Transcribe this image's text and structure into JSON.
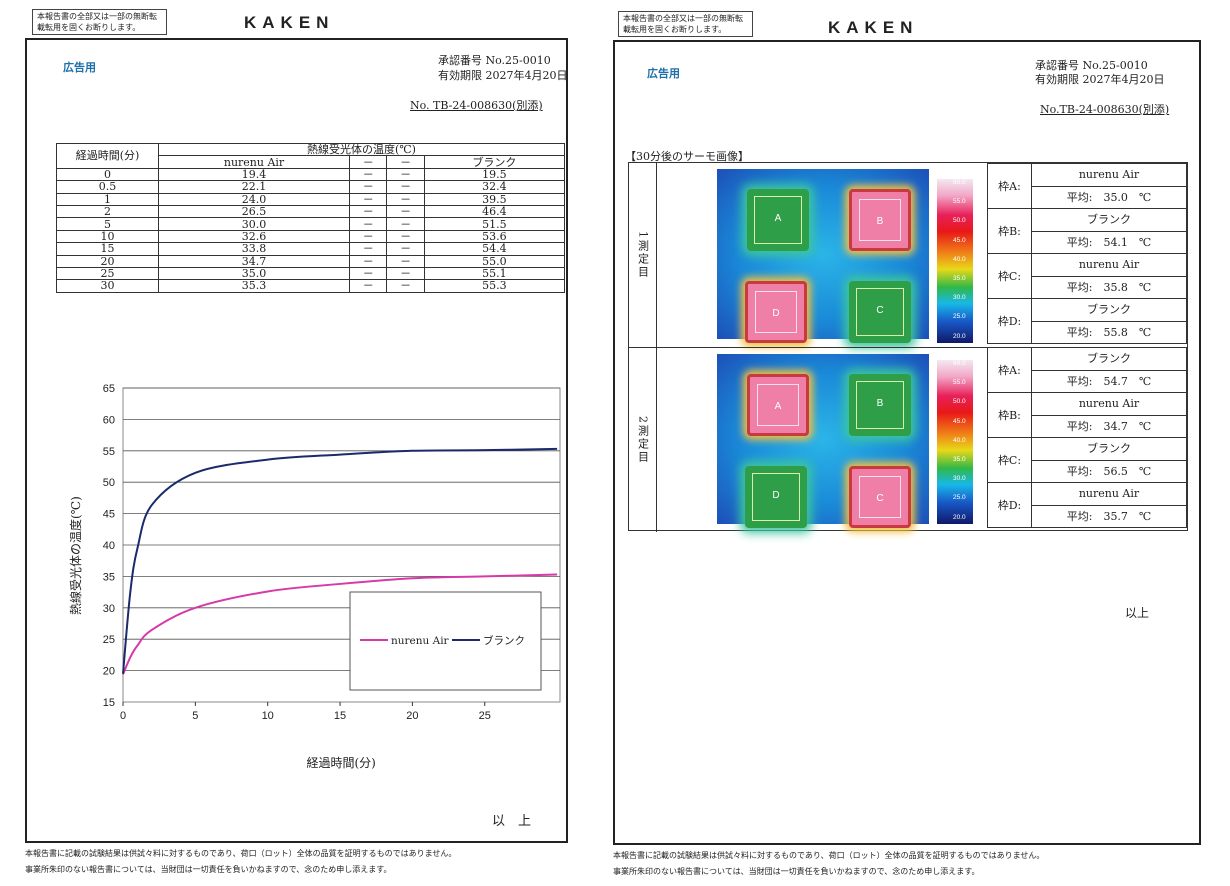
{
  "left_page": {
    "notice": "本報告書の全部又は一部の無断転載転用を固くお断りします。",
    "logo": "KAKEN",
    "ad_label": "広告用",
    "approval_no": "承認番号 No.25-0010",
    "valid_until": "有効期限 2027年4月20日",
    "report_no": "No. TB-24-008630(別添)",
    "table": {
      "header_time": "経過時間(分)",
      "header_group": "熱線受光体の温度(℃)",
      "columns": [
        "nurenu Air",
        "－",
        "－",
        "ブランク"
      ],
      "rows": [
        [
          "0",
          "19.4",
          "－",
          "－",
          "19.5"
        ],
        [
          "0.5",
          "22.1",
          "－",
          "－",
          "32.4"
        ],
        [
          "1",
          "24.0",
          "－",
          "－",
          "39.5"
        ],
        [
          "2",
          "26.5",
          "－",
          "－",
          "46.4"
        ],
        [
          "5",
          "30.0",
          "－",
          "－",
          "51.5"
        ],
        [
          "10",
          "32.6",
          "－",
          "－",
          "53.6"
        ],
        [
          "15",
          "33.8",
          "－",
          "－",
          "54.4"
        ],
        [
          "20",
          "34.7",
          "－",
          "－",
          "55.0"
        ],
        [
          "25",
          "35.0",
          "－",
          "－",
          "55.1"
        ],
        [
          "30",
          "35.3",
          "－",
          "－",
          "55.3"
        ]
      ]
    },
    "closing": "以　上",
    "footer": [
      "本報告書に記載の試験結果は供試々料に対するものであり、荷口（ロット）全体の品質を証明するものではありません。",
      "事業所朱印のない報告書については、当財団は一切責任を負いかねますので、念のため申し添えます。"
    ]
  },
  "chart_data": {
    "type": "line",
    "xlabel": "経過時間(分)",
    "ylabel": "熱線受光体の温度(℃)",
    "xlim": [
      0,
      30
    ],
    "ylim": [
      15,
      65
    ],
    "xticks": [
      "0",
      "5",
      "10",
      "15",
      "20",
      "25"
    ],
    "yticks": [
      "15",
      "20",
      "25",
      "30",
      "35",
      "40",
      "45",
      "50",
      "55",
      "60",
      "65"
    ],
    "grid": "horizontal",
    "legend": "bottom-right",
    "x": [
      0,
      0.5,
      1,
      2,
      5,
      10,
      15,
      20,
      25,
      30
    ],
    "series": [
      {
        "name": "nurenu Air",
        "color": "#d63aa8",
        "values": [
          19.4,
          22.1,
          24.0,
          26.5,
          30.0,
          32.6,
          33.8,
          34.7,
          35.0,
          35.3
        ]
      },
      {
        "name": "ブランク",
        "color": "#1a2a6c",
        "values": [
          19.5,
          32.4,
          39.5,
          46.4,
          51.5,
          53.6,
          54.4,
          55.0,
          55.1,
          55.3
        ]
      }
    ]
  },
  "right_page": {
    "notice": "本報告書の全部又は一部の無断転載転用を固くお断りします。",
    "logo": "KAKEN",
    "ad_label": "広告用",
    "approval_no": "承認番号 No.25-0010",
    "valid_until": "有効期限 2027年4月20日",
    "report_no": "No.TB-24-008630(別添)",
    "section_title": "【30分後のサーモ画像】",
    "scale_labels": [
      "60.0",
      "55.0",
      "50.0",
      "45.0",
      "40.0",
      "35.0",
      "30.0",
      "25.0",
      "20.0"
    ],
    "measurements": [
      {
        "label": "1測定目",
        "squares": [
          {
            "id": "A",
            "hot": false
          },
          {
            "id": "B",
            "hot": true
          },
          {
            "id": "D",
            "hot": true
          },
          {
            "id": "C",
            "hot": false
          }
        ],
        "frames": [
          {
            "frame": "枠A:",
            "sample": "nurenu Air",
            "avg": "平均:　35.0　℃"
          },
          {
            "frame": "枠B:",
            "sample": "ブランク",
            "avg": "平均:　54.1　℃"
          },
          {
            "frame": "枠C:",
            "sample": "nurenu Air",
            "avg": "平均:　35.8　℃"
          },
          {
            "frame": "枠D:",
            "sample": "ブランク",
            "avg": "平均:　55.8　℃"
          }
        ]
      },
      {
        "label": "2測定目",
        "squares": [
          {
            "id": "A",
            "hot": true
          },
          {
            "id": "B",
            "hot": false
          },
          {
            "id": "D",
            "hot": false
          },
          {
            "id": "C",
            "hot": true
          }
        ],
        "frames": [
          {
            "frame": "枠A:",
            "sample": "ブランク",
            "avg": "平均:　54.7　℃"
          },
          {
            "frame": "枠B:",
            "sample": "nurenu Air",
            "avg": "平均:　34.7　℃"
          },
          {
            "frame": "枠C:",
            "sample": "ブランク",
            "avg": "平均:　56.5　℃"
          },
          {
            "frame": "枠D:",
            "sample": "nurenu Air",
            "avg": "平均:　35.7　℃"
          }
        ]
      }
    ],
    "closing": "以上",
    "footer": [
      "本報告書に記載の試験結果は供試々料に対するものであり、荷口（ロット）全体の品質を証明するものではありません。",
      "事業所朱印のない報告書については、当財団は一切責任を負いかねますので、念のため申し添えます。"
    ]
  }
}
